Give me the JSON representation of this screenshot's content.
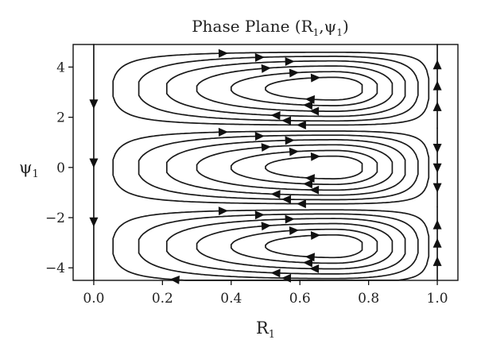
{
  "chart_data": {
    "type": "streamplot",
    "title_main": "Phase Plane (R",
    "title_sub1": "1",
    "title_mid": ",ψ",
    "title_sub2": "1",
    "title_end": ")",
    "xlabel_main": "R",
    "xlabel_sub": "1",
    "ylabel_main": "ψ",
    "ylabel_sub": "1",
    "xlim": [
      -0.06,
      1.06
    ],
    "ylim": [
      -4.5,
      4.9
    ],
    "x_ticks": [
      0.0,
      0.2,
      0.4,
      0.6,
      0.8,
      1.0
    ],
    "x_tick_labels": [
      "0.0",
      "0.2",
      "0.4",
      "0.6",
      "0.8",
      "1.0"
    ],
    "y_ticks": [
      -4,
      -2,
      0,
      2,
      4
    ],
    "y_tick_labels": [
      "−4",
      "−2",
      "0",
      "2",
      "4"
    ],
    "grid": false,
    "vortex_centers": [
      {
        "R": 0.7,
        "psi": 3.14
      },
      {
        "R": 0.7,
        "psi": 0.0
      },
      {
        "R": 0.7,
        "psi": -3.14
      }
    ],
    "vortex_rotation": "clockwise",
    "edge_flow": [
      {
        "R": 0.0,
        "psi_range": [
          -4.5,
          4.9
        ],
        "direction": "down"
      },
      {
        "R": 1.0,
        "psi_range": [
          1.57,
          4.9
        ],
        "direction": "up"
      },
      {
        "R": 1.0,
        "psi_range": [
          -1.57,
          1.57
        ],
        "direction": "down"
      },
      {
        "R": 1.0,
        "psi_range": [
          -4.5,
          -1.57
        ],
        "direction": "up"
      }
    ],
    "colors": {
      "stream": "#1a1a1a",
      "arrow": "#111111"
    }
  }
}
